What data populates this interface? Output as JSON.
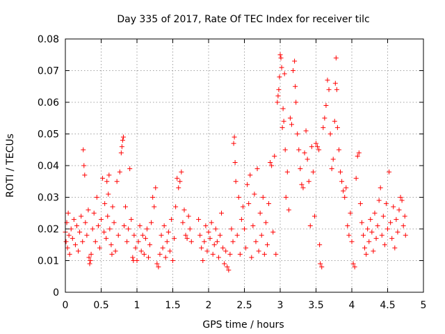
{
  "chart_data": {
    "type": "scatter",
    "title": "Day 335 of 2017, Rate Of TEC Index for receiver tilc",
    "xlabel": "GPS time / hours",
    "ylabel": "ROTI / TECUs",
    "xlim": [
      0,
      5
    ],
    "ylim": [
      0,
      0.08
    ],
    "x_ticks": [
      0,
      0.5,
      1,
      1.5,
      2,
      2.5,
      3,
      3.5,
      4,
      4.5,
      5
    ],
    "x_tick_labels": [
      "0",
      "0.5",
      "1",
      "1.5",
      "2",
      "2.5",
      "3",
      "3.5",
      "4",
      "4.5",
      "5"
    ],
    "y_ticks": [
      0,
      0.01,
      0.02,
      0.03,
      0.04,
      0.05,
      0.06,
      0.07,
      0.08
    ],
    "y_tick_labels": [
      "0",
      "0.01",
      "0.02",
      "0.03",
      "0.04",
      "0.05",
      "0.06",
      "0.07",
      "0.08"
    ],
    "grid": true,
    "marker": "plus",
    "marker_color": "#ff0000",
    "series": [
      {
        "points": [
          [
            0.0,
            0.019
          ],
          [
            0.01,
            0.016
          ],
          [
            0.02,
            0.022
          ],
          [
            0.03,
            0.014
          ],
          [
            0.04,
            0.025
          ],
          [
            0.05,
            0.018
          ],
          [
            0.06,
            0.012
          ],
          [
            0.08,
            0.02
          ],
          [
            0.1,
            0.017
          ],
          [
            0.12,
            0.023
          ],
          [
            0.14,
            0.015
          ],
          [
            0.16,
            0.021
          ],
          [
            0.18,
            0.013
          ],
          [
            0.2,
            0.019
          ],
          [
            0.22,
            0.024
          ],
          [
            0.24,
            0.016
          ],
          [
            0.25,
            0.045
          ],
          [
            0.26,
            0.04
          ],
          [
            0.27,
            0.037
          ],
          [
            0.28,
            0.022
          ],
          [
            0.3,
            0.018
          ],
          [
            0.32,
            0.026
          ],
          [
            0.33,
            0.011
          ],
          [
            0.34,
            0.009
          ],
          [
            0.35,
            0.01
          ],
          [
            0.36,
            0.012
          ],
          [
            0.38,
            0.02
          ],
          [
            0.4,
            0.025
          ],
          [
            0.42,
            0.016
          ],
          [
            0.44,
            0.03
          ],
          [
            0.46,
            0.021
          ],
          [
            0.48,
            0.014
          ],
          [
            0.5,
            0.023
          ],
          [
            0.52,
            0.036
          ],
          [
            0.54,
            0.019
          ],
          [
            0.55,
            0.028
          ],
          [
            0.57,
            0.017
          ],
          [
            0.58,
            0.035
          ],
          [
            0.59,
            0.024
          ],
          [
            0.6,
            0.031
          ],
          [
            0.61,
            0.037
          ],
          [
            0.62,
            0.02
          ],
          [
            0.64,
            0.015
          ],
          [
            0.65,
            0.012
          ],
          [
            0.66,
            0.027
          ],
          [
            0.68,
            0.022
          ],
          [
            0.7,
            0.013
          ],
          [
            0.72,
            0.035
          ],
          [
            0.74,
            0.018
          ],
          [
            0.76,
            0.038
          ],
          [
            0.78,
            0.044
          ],
          [
            0.79,
            0.046
          ],
          [
            0.8,
            0.048
          ],
          [
            0.81,
            0.049
          ],
          [
            0.82,
            0.021
          ],
          [
            0.84,
            0.027
          ],
          [
            0.86,
            0.016
          ],
          [
            0.88,
            0.02
          ],
          [
            0.9,
            0.039
          ],
          [
            0.92,
            0.023
          ],
          [
            0.94,
            0.011
          ],
          [
            0.95,
            0.01
          ],
          [
            0.96,
            0.018
          ],
          [
            0.98,
            0.014
          ],
          [
            1.0,
            0.01
          ],
          [
            1.02,
            0.016
          ],
          [
            1.04,
            0.021
          ],
          [
            1.06,
            0.013
          ],
          [
            1.08,
            0.018
          ],
          [
            1.1,
            0.012
          ],
          [
            1.12,
            0.017
          ],
          [
            1.14,
            0.02
          ],
          [
            1.16,
            0.011
          ],
          [
            1.18,
            0.015
          ],
          [
            1.2,
            0.022
          ],
          [
            1.22,
            0.03
          ],
          [
            1.24,
            0.027
          ],
          [
            1.26,
            0.033
          ],
          [
            1.28,
            0.009
          ],
          [
            1.3,
            0.008
          ],
          [
            1.32,
            0.012
          ],
          [
            1.34,
            0.018
          ],
          [
            1.36,
            0.014
          ],
          [
            1.38,
            0.021
          ],
          [
            1.4,
            0.011
          ],
          [
            1.42,
            0.016
          ],
          [
            1.44,
            0.019
          ],
          [
            1.46,
            0.013
          ],
          [
            1.48,
            0.023
          ],
          [
            1.5,
            0.01
          ],
          [
            1.52,
            0.017
          ],
          [
            1.54,
            0.027
          ],
          [
            1.56,
            0.036
          ],
          [
            1.58,
            0.033
          ],
          [
            1.6,
            0.035
          ],
          [
            1.62,
            0.038
          ],
          [
            1.64,
            0.022
          ],
          [
            1.66,
            0.026
          ],
          [
            1.68,
            0.018
          ],
          [
            1.7,
            0.017
          ],
          [
            1.72,
            0.024
          ],
          [
            1.74,
            0.02
          ],
          [
            1.76,
            0.016
          ],
          [
            1.86,
            0.023
          ],
          [
            1.88,
            0.018
          ],
          [
            1.9,
            0.014
          ],
          [
            1.92,
            0.01
          ],
          [
            1.94,
            0.016
          ],
          [
            1.96,
            0.021
          ],
          [
            1.98,
            0.013
          ],
          [
            2.0,
            0.019
          ],
          [
            2.02,
            0.017
          ],
          [
            2.04,
            0.022
          ],
          [
            2.06,
            0.012
          ],
          [
            2.08,
            0.015
          ],
          [
            2.1,
            0.02
          ],
          [
            2.12,
            0.016
          ],
          [
            2.14,
            0.011
          ],
          [
            2.16,
            0.018
          ],
          [
            2.18,
            0.025
          ],
          [
            2.2,
            0.014
          ],
          [
            2.22,
            0.009
          ],
          [
            2.24,
            0.013
          ],
          [
            2.26,
            0.008
          ],
          [
            2.28,
            0.007
          ],
          [
            2.3,
            0.012
          ],
          [
            2.32,
            0.02
          ],
          [
            2.34,
            0.016
          ],
          [
            2.35,
            0.047
          ],
          [
            2.36,
            0.049
          ],
          [
            2.37,
            0.041
          ],
          [
            2.38,
            0.035
          ],
          [
            2.4,
            0.018
          ],
          [
            2.42,
            0.03
          ],
          [
            2.44,
            0.012
          ],
          [
            2.46,
            0.023
          ],
          [
            2.48,
            0.027
          ],
          [
            2.5,
            0.02
          ],
          [
            2.52,
            0.014
          ],
          [
            2.54,
            0.034
          ],
          [
            2.56,
            0.028
          ],
          [
            2.58,
            0.037
          ],
          [
            2.6,
            0.011
          ],
          [
            2.62,
            0.021
          ],
          [
            2.64,
            0.031
          ],
          [
            2.66,
            0.016
          ],
          [
            2.68,
            0.039
          ],
          [
            2.7,
            0.013
          ],
          [
            2.72,
            0.025
          ],
          [
            2.74,
            0.018
          ],
          [
            2.76,
            0.03
          ],
          [
            2.78,
            0.012
          ],
          [
            2.8,
            0.022
          ],
          [
            2.82,
            0.015
          ],
          [
            2.84,
            0.028
          ],
          [
            2.86,
            0.041
          ],
          [
            2.88,
            0.04
          ],
          [
            2.9,
            0.019
          ],
          [
            2.92,
            0.043
          ],
          [
            2.94,
            0.012
          ],
          [
            2.96,
            0.06
          ],
          [
            2.97,
            0.062
          ],
          [
            2.98,
            0.064
          ],
          [
            2.99,
            0.068
          ],
          [
            3.0,
            0.075
          ],
          [
            3.01,
            0.074
          ],
          [
            3.02,
            0.071
          ],
          [
            3.03,
            0.052
          ],
          [
            3.04,
            0.058
          ],
          [
            3.05,
            0.054
          ],
          [
            3.06,
            0.069
          ],
          [
            3.07,
            0.045
          ],
          [
            3.08,
            0.03
          ],
          [
            3.1,
            0.038
          ],
          [
            3.12,
            0.026
          ],
          [
            3.14,
            0.055
          ],
          [
            3.16,
            0.053
          ],
          [
            3.18,
            0.07
          ],
          [
            3.2,
            0.073
          ],
          [
            3.21,
            0.065
          ],
          [
            3.22,
            0.06
          ],
          [
            3.24,
            0.05
          ],
          [
            3.26,
            0.045
          ],
          [
            3.28,
            0.039
          ],
          [
            3.3,
            0.034
          ],
          [
            3.32,
            0.033
          ],
          [
            3.34,
            0.044
          ],
          [
            3.36,
            0.051
          ],
          [
            3.38,
            0.042
          ],
          [
            3.4,
            0.035
          ],
          [
            3.42,
            0.021
          ],
          [
            3.44,
            0.046
          ],
          [
            3.46,
            0.038
          ],
          [
            3.48,
            0.024
          ],
          [
            3.5,
            0.047
          ],
          [
            3.52,
            0.046
          ],
          [
            3.54,
            0.045
          ],
          [
            3.55,
            0.015
          ],
          [
            3.56,
            0.009
          ],
          [
            3.58,
            0.008
          ],
          [
            3.6,
            0.052
          ],
          [
            3.62,
            0.055
          ],
          [
            3.64,
            0.059
          ],
          [
            3.66,
            0.067
          ],
          [
            3.68,
            0.064
          ],
          [
            3.7,
            0.05
          ],
          [
            3.72,
            0.039
          ],
          [
            3.74,
            0.042
          ],
          [
            3.76,
            0.054
          ],
          [
            3.77,
            0.066
          ],
          [
            3.78,
            0.074
          ],
          [
            3.79,
            0.064
          ],
          [
            3.8,
            0.052
          ],
          [
            3.82,
            0.045
          ],
          [
            3.84,
            0.038
          ],
          [
            3.86,
            0.035
          ],
          [
            3.88,
            0.032
          ],
          [
            3.9,
            0.03
          ],
          [
            3.92,
            0.033
          ],
          [
            3.94,
            0.021
          ],
          [
            3.96,
            0.018
          ],
          [
            3.98,
            0.025
          ],
          [
            4.0,
            0.016
          ],
          [
            4.02,
            0.009
          ],
          [
            4.04,
            0.008
          ],
          [
            4.06,
            0.036
          ],
          [
            4.08,
            0.043
          ],
          [
            4.1,
            0.044
          ],
          [
            4.12,
            0.028
          ],
          [
            4.14,
            0.022
          ],
          [
            4.16,
            0.018
          ],
          [
            4.18,
            0.014
          ],
          [
            4.2,
            0.012
          ],
          [
            4.22,
            0.02
          ],
          [
            4.24,
            0.016
          ],
          [
            4.26,
            0.023
          ],
          [
            4.28,
            0.019
          ],
          [
            4.3,
            0.013
          ],
          [
            4.32,
            0.025
          ],
          [
            4.34,
            0.017
          ],
          [
            4.36,
            0.021
          ],
          [
            4.38,
            0.029
          ],
          [
            4.4,
            0.033
          ],
          [
            4.42,
            0.018
          ],
          [
            4.44,
            0.024
          ],
          [
            4.46,
            0.015
          ],
          [
            4.48,
            0.028
          ],
          [
            4.5,
            0.02
          ],
          [
            4.52,
            0.038
          ],
          [
            4.54,
            0.022
          ],
          [
            4.56,
            0.017
          ],
          [
            4.58,
            0.027
          ],
          [
            4.6,
            0.014
          ],
          [
            4.62,
            0.023
          ],
          [
            4.64,
            0.019
          ],
          [
            4.66,
            0.026
          ],
          [
            4.68,
            0.03
          ],
          [
            4.7,
            0.029
          ],
          [
            4.72,
            0.021
          ],
          [
            4.74,
            0.024
          ],
          [
            4.75,
            0.018
          ]
        ]
      }
    ]
  }
}
